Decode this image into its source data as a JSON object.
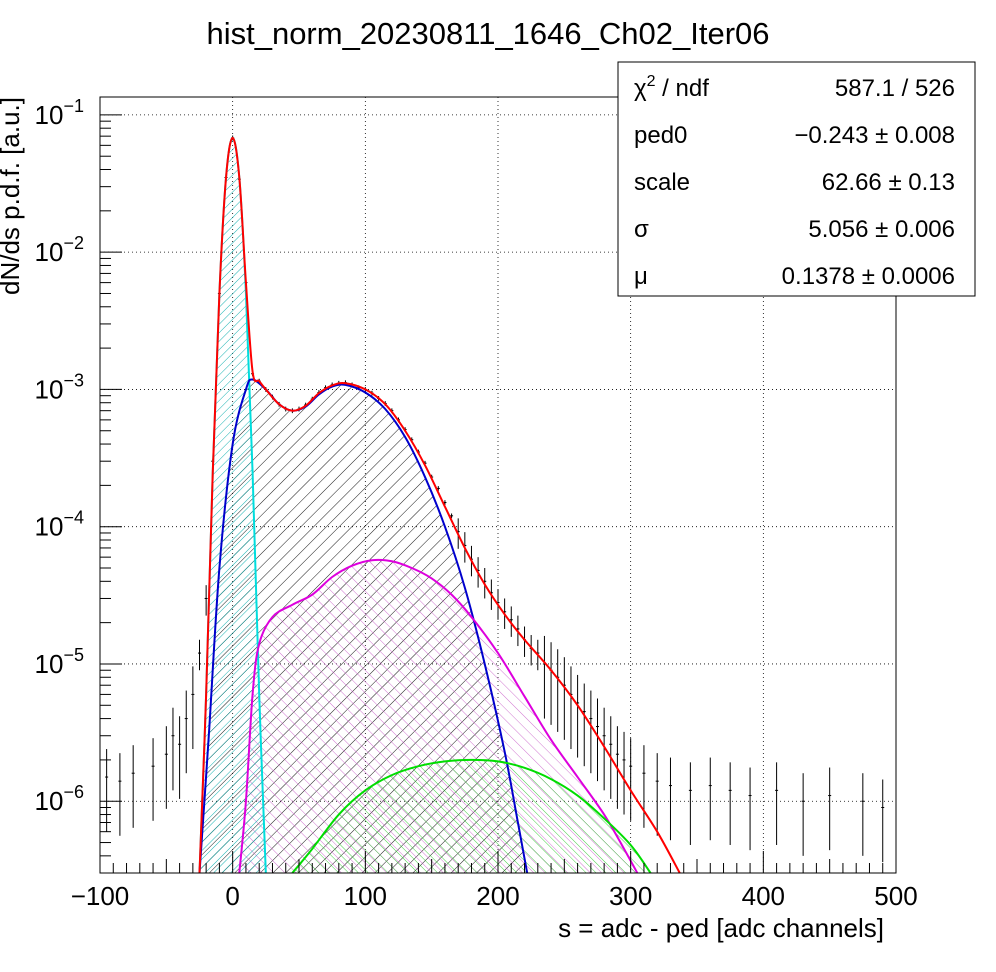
{
  "chart_data": {
    "type": "line",
    "title": "hist_norm_20230811_1646_Ch02_Iter06",
    "xlabel": "s = adc - ped [adc channels]",
    "ylabel": "dN/ds p.d.f. [a.u.]",
    "xlim": [
      -100,
      500
    ],
    "ylim": [
      3e-07,
      0.135
    ],
    "yscale": "log",
    "grid": true,
    "x_ticks": [
      {
        "value": -100,
        "label": "−100"
      },
      {
        "value": 0,
        "label": "0"
      },
      {
        "value": 100,
        "label": "100"
      },
      {
        "value": 200,
        "label": "200"
      },
      {
        "value": 300,
        "label": "300"
      },
      {
        "value": 400,
        "label": "400"
      },
      {
        "value": 500,
        "label": "500"
      }
    ],
    "y_ticks": [
      {
        "value": 1e-06,
        "base": "10",
        "exp": "−6"
      },
      {
        "value": 1e-05,
        "base": "10",
        "exp": "−5"
      },
      {
        "value": 0.0001,
        "base": "10",
        "exp": "−4"
      },
      {
        "value": 0.001,
        "base": "10",
        "exp": "−3"
      },
      {
        "value": 0.01,
        "base": "10",
        "exp": "−2"
      },
      {
        "value": 0.1,
        "base": "10",
        "exp": "−1"
      }
    ],
    "stats": {
      "rows": [
        {
          "name_base": "χ",
          "name_sup": "2",
          "name_rest": " / ndf",
          "value": "587.1 / 526"
        },
        {
          "name_base": "ped0",
          "name_sup": "",
          "name_rest": "",
          "value": "−0.243 ± 0.008"
        },
        {
          "name_base": "scale",
          "name_sup": "",
          "name_rest": "",
          "value": "62.66 ± 0.13"
        },
        {
          "name_base": "σ",
          "name_sup": "",
          "name_rest": "",
          "value": "5.056 ± 0.006"
        },
        {
          "name_base": "μ",
          "name_sup": "",
          "name_rest": "",
          "value": "0.1378 ± 0.0006"
        }
      ]
    },
    "series": [
      {
        "role": "pedestal component",
        "color": "#00dddd",
        "hatched": true,
        "points": [
          [
            -25,
            3e-07
          ],
          [
            -20,
            6e-06
          ],
          [
            -15,
            0.00025
          ],
          [
            -10,
            0.005
          ],
          [
            -5,
            0.035
          ],
          [
            0,
            0.068
          ],
          [
            5,
            0.035
          ],
          [
            10,
            0.005
          ],
          [
            15,
            0.00025
          ],
          [
            20,
            6e-06
          ],
          [
            25,
            3e-07
          ]
        ]
      },
      {
        "role": "1 photoelectron component",
        "color": "#0000cc",
        "hatched": true,
        "points": [
          [
            -25,
            3e-07
          ],
          [
            -18,
            3e-06
          ],
          [
            -10,
            5e-05
          ],
          [
            0,
            0.0004
          ],
          [
            10,
            0.001
          ],
          [
            15,
            0.00118
          ],
          [
            25,
            0.001
          ],
          [
            35,
            0.00078
          ],
          [
            45,
            0.0007
          ],
          [
            55,
            0.00075
          ],
          [
            65,
            0.00092
          ],
          [
            75,
            0.00105
          ],
          [
            85,
            0.00108
          ],
          [
            100,
            0.00095
          ],
          [
            115,
            0.00072
          ],
          [
            130,
            0.00045
          ],
          [
            145,
            0.00023
          ],
          [
            160,
            0.0001
          ],
          [
            175,
            3.6e-05
          ],
          [
            190,
            1e-05
          ],
          [
            205,
            2.3e-06
          ],
          [
            215,
            7e-07
          ],
          [
            222,
            3e-07
          ]
        ]
      },
      {
        "role": "2 photoelectron component",
        "color": "#dd00dd",
        "hatched": true,
        "points": [
          [
            5,
            3e-07
          ],
          [
            10,
            1e-06
          ],
          [
            15,
            6e-06
          ],
          [
            20,
            1.4e-05
          ],
          [
            30,
            2.2e-05
          ],
          [
            45,
            2.7e-05
          ],
          [
            60,
            3.2e-05
          ],
          [
            75,
            4.3e-05
          ],
          [
            90,
            5.2e-05
          ],
          [
            105,
            5.7e-05
          ],
          [
            120,
            5.6e-05
          ],
          [
            135,
            5e-05
          ],
          [
            150,
            4.2e-05
          ],
          [
            165,
            3.2e-05
          ],
          [
            180,
            2.2e-05
          ],
          [
            200,
            1.2e-05
          ],
          [
            220,
            5.8e-06
          ],
          [
            240,
            2.8e-06
          ],
          [
            260,
            1.5e-06
          ],
          [
            280,
            8e-07
          ],
          [
            295,
            4.5e-07
          ],
          [
            305,
            3e-07
          ]
        ]
      },
      {
        "role": "3 photoelectron component",
        "color": "#00dd00",
        "hatched": true,
        "points": [
          [
            45,
            3e-07
          ],
          [
            60,
            4.5e-07
          ],
          [
            80,
            8e-07
          ],
          [
            100,
            1.2e-06
          ],
          [
            120,
            1.55e-06
          ],
          [
            140,
            1.8e-06
          ],
          [
            160,
            1.95e-06
          ],
          [
            180,
            2e-06
          ],
          [
            200,
            1.95e-06
          ],
          [
            220,
            1.75e-06
          ],
          [
            240,
            1.45e-06
          ],
          [
            260,
            1.1e-06
          ],
          [
            280,
            7.5e-07
          ],
          [
            300,
            4.8e-07
          ],
          [
            315,
            3e-07
          ]
        ]
      },
      {
        "role": "total fit",
        "color": "#ff0000",
        "hatched": false,
        "points": [
          [
            -25,
            3e-07
          ],
          [
            -20,
            6e-06
          ],
          [
            -15,
            0.00025
          ],
          [
            -10,
            0.005
          ],
          [
            -5,
            0.035
          ],
          [
            0,
            0.068
          ],
          [
            5,
            0.035
          ],
          [
            10,
            0.006
          ],
          [
            15,
            0.00135
          ],
          [
            20,
            0.00115
          ],
          [
            25,
            0.001
          ],
          [
            35,
            0.00078
          ],
          [
            45,
            0.0007
          ],
          [
            55,
            0.00076
          ],
          [
            65,
            0.00094
          ],
          [
            75,
            0.00107
          ],
          [
            85,
            0.00111
          ],
          [
            100,
            0.001
          ],
          [
            115,
            0.00078
          ],
          [
            130,
            0.0005
          ],
          [
            145,
            0.00028
          ],
          [
            160,
            0.00014
          ],
          [
            175,
            7e-05
          ],
          [
            190,
            3.8e-05
          ],
          [
            205,
            2.3e-05
          ],
          [
            220,
            1.5e-05
          ],
          [
            240,
            9e-06
          ],
          [
            260,
            5e-06
          ],
          [
            280,
            2.5e-06
          ],
          [
            300,
            1.2e-06
          ],
          [
            320,
            6e-07
          ],
          [
            337,
            3e-07
          ]
        ]
      }
    ],
    "histogram": {
      "role": "measured histogram with error bars",
      "color": "#000000",
      "points": [
        [
          -95,
          1.5e-06
        ],
        [
          -85,
          1.4e-06
        ],
        [
          -75,
          1.6e-06
        ],
        [
          -60,
          1.8e-06
        ],
        [
          -50,
          2.2e-06
        ],
        [
          -45,
          3e-06
        ],
        [
          -40,
          2.6e-06
        ],
        [
          -35,
          4e-06
        ],
        [
          -30,
          6e-06
        ],
        [
          -25,
          1.2e-05
        ],
        [
          -20,
          3e-05
        ],
        [
          -15,
          0.0003
        ],
        [
          -10,
          0.005
        ],
        [
          -5,
          0.035
        ],
        [
          0,
          0.068
        ],
        [
          5,
          0.034
        ],
        [
          10,
          0.006
        ],
        [
          15,
          0.0013
        ],
        [
          20,
          0.00115
        ],
        [
          25,
          0.001
        ],
        [
          30,
          0.00088
        ],
        [
          35,
          0.00078
        ],
        [
          40,
          0.00072
        ],
        [
          45,
          0.0007
        ],
        [
          50,
          0.00072
        ],
        [
          55,
          0.00077
        ],
        [
          60,
          0.00085
        ],
        [
          65,
          0.00095
        ],
        [
          70,
          0.00103
        ],
        [
          75,
          0.00108
        ],
        [
          80,
          0.00111
        ],
        [
          85,
          0.00112
        ],
        [
          90,
          0.00108
        ],
        [
          95,
          0.00103
        ],
        [
          100,
          0.001
        ],
        [
          105,
          0.00094
        ],
        [
          110,
          0.00086
        ],
        [
          115,
          0.00079
        ],
        [
          120,
          0.0007
        ],
        [
          125,
          0.0006
        ],
        [
          130,
          0.00051
        ],
        [
          135,
          0.00043
        ],
        [
          140,
          0.00035
        ],
        [
          145,
          0.00029
        ],
        [
          150,
          0.00023
        ],
        [
          155,
          0.00019
        ],
        [
          160,
          0.00015
        ],
        [
          165,
          0.00012
        ],
        [
          170,
          9.2e-05
        ],
        [
          175,
          7.3e-05
        ],
        [
          180,
          5.8e-05
        ],
        [
          185,
          4.8e-05
        ],
        [
          190,
          4e-05
        ],
        [
          195,
          3.3e-05
        ],
        [
          200,
          2.8e-05
        ],
        [
          205,
          2.4e-05
        ],
        [
          210,
          2.1e-05
        ],
        [
          215,
          1.8e-05
        ],
        [
          220,
          1.5e-05
        ],
        [
          225,
          1.3e-05
        ],
        [
          230,
          1.2e-05
        ],
        [
          235,
          1e-05
        ],
        [
          240,
          9e-06
        ],
        [
          245,
          8e-06
        ],
        [
          250,
          7e-06
        ],
        [
          255,
          6e-06
        ],
        [
          260,
          5.2e-06
        ],
        [
          265,
          4.5e-06
        ],
        [
          270,
          4e-06
        ],
        [
          275,
          3.5e-06
        ],
        [
          280,
          3e-06
        ],
        [
          285,
          2.6e-06
        ],
        [
          290,
          2.2e-06
        ],
        [
          295,
          2e-06
        ],
        [
          300,
          1.8e-06
        ],
        [
          310,
          1.6e-06
        ],
        [
          320,
          1.4e-06
        ],
        [
          330,
          1.3e-06
        ],
        [
          345,
          1.2e-06
        ],
        [
          360,
          1.3e-06
        ],
        [
          375,
          1.2e-06
        ],
        [
          390,
          1.1e-06
        ],
        [
          410,
          1.2e-06
        ],
        [
          430,
          1e-06
        ],
        [
          450,
          1.1e-06
        ],
        [
          475,
          1e-06
        ],
        [
          490,
          9e-07
        ]
      ]
    }
  }
}
